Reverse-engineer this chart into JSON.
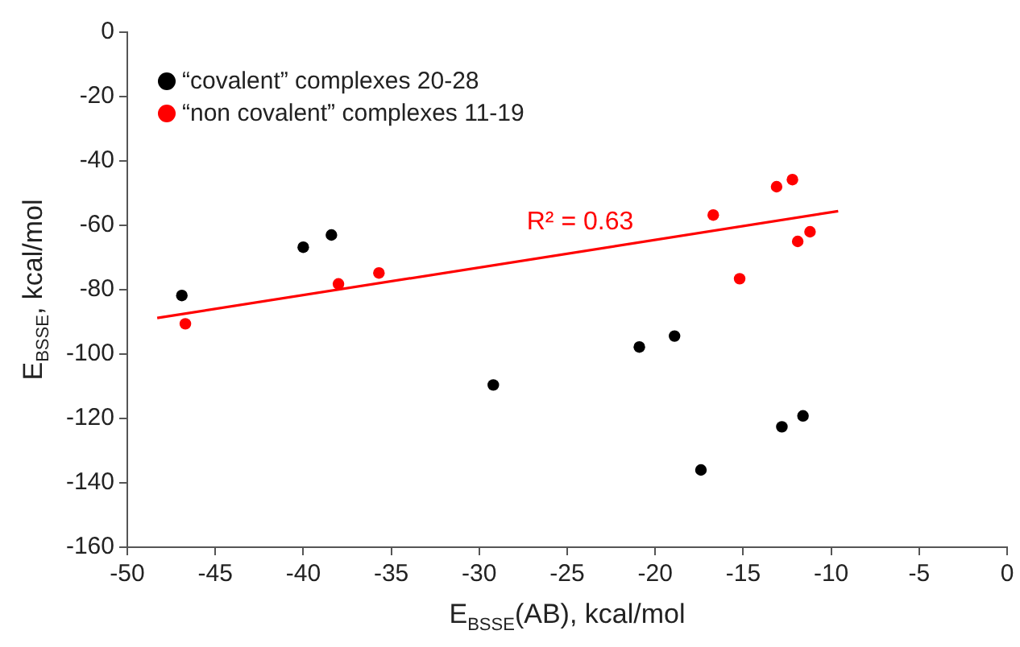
{
  "chart_data": {
    "type": "scatter",
    "xlabel": "E$_{BSSE}$(AB), kcal/mol",
    "ylabel": "E$_{BSSE}$, kcal/mol",
    "series": [
      {
        "name": "“covalent” complexes 20-28",
        "color": "#000000",
        "x": [
          -46.9,
          -40.0,
          -38.4,
          -29.2,
          -20.9,
          -18.9,
          -17.4,
          -12.8,
          -11.6
        ],
        "values": [
          -81.8,
          -66.8,
          -63,
          -109.6,
          -97.8,
          -94.4,
          -136,
          -122.6,
          -119.2
        ]
      },
      {
        "name": "“non covalent” complexes 11-19",
        "color": "#ff0000",
        "x": [
          -46.7,
          -38.0,
          -35.7,
          -16.7,
          -15.2,
          -13.1,
          -12.2,
          -11.9,
          -11.2
        ],
        "values": [
          -90.6,
          -78.2,
          -74.8,
          -56.8,
          -76.6,
          -48,
          -45.8,
          -65,
          -62
        ]
      },
      {
        "type": "line",
        "color": "#ff0000",
        "x": [
          -48.3,
          -9.6
        ],
        "values": [
          -88.8,
          -55.6
        ],
        "marker": "none"
      }
    ],
    "annotations": [
      "R² = 0.63"
    ],
    "xlim": [
      -50,
      0
    ],
    "xticks": [
      -50,
      -45,
      -40,
      -35,
      -30,
      -25,
      -20,
      -15,
      -10,
      -5,
      0
    ],
    "ylim": [
      -160,
      0
    ],
    "yticks": [
      -160,
      -140,
      -120,
      -100,
      -80,
      -60,
      -40,
      -20,
      0
    ],
    "grid": false,
    "legend": "top left",
    "marker": "circle"
  }
}
